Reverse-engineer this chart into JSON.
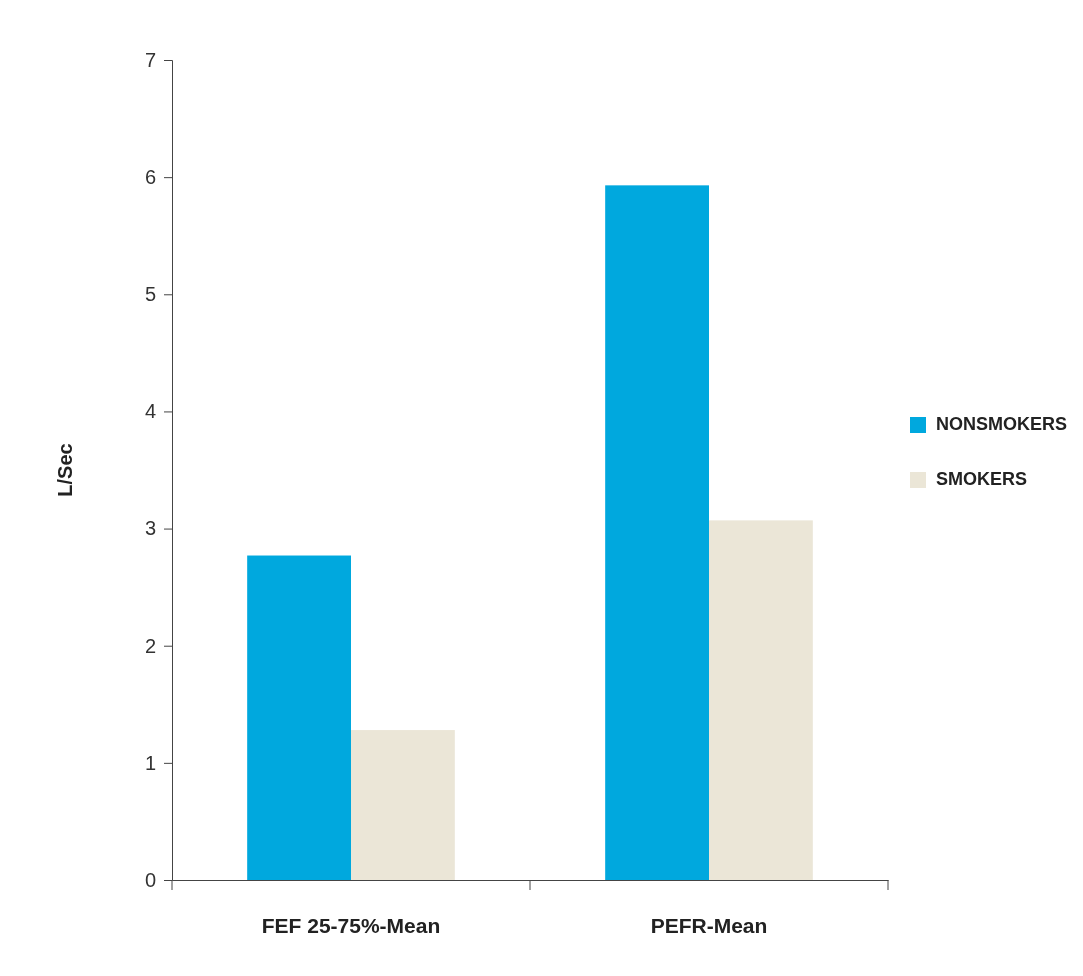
{
  "chart_data": {
    "type": "bar",
    "ylabel": "L/Sec",
    "categories": [
      "FEF 25-75%-Mean",
      "PEFR-Mean"
    ],
    "series": [
      {
        "name": "NONSMOKERS",
        "color": "#00a8de",
        "values": [
          2.77,
          5.93
        ]
      },
      {
        "name": "SMOKERS",
        "color": "#ebe6d7",
        "values": [
          1.28,
          3.07
        ]
      }
    ],
    "ylim": [
      0,
      7
    ],
    "yticks": [
      0,
      1,
      2,
      3,
      4,
      5,
      6,
      7
    ],
    "grid": false,
    "legend": "right"
  }
}
